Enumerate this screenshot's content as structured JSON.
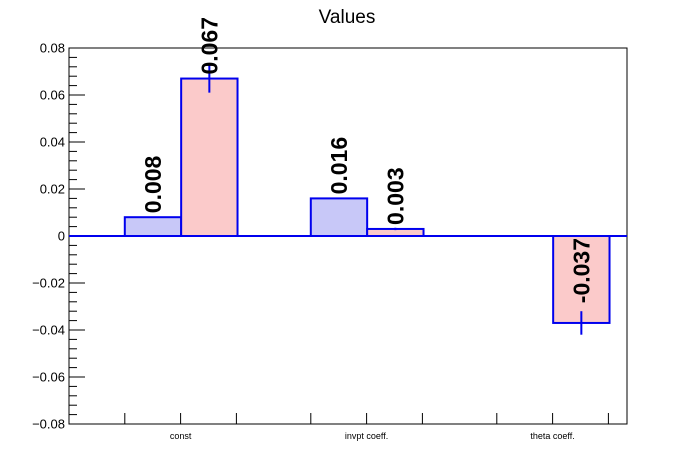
{
  "chart_data": {
    "type": "bar",
    "title": "Values",
    "xlabel": "",
    "ylabel": "",
    "categories": [
      "const",
      "invpt coeff.",
      "theta coeff."
    ],
    "ylim": [
      -0.08,
      0.08
    ],
    "yticks": [
      -0.08,
      -0.06,
      -0.04,
      -0.02,
      0,
      0.02,
      0.04,
      0.06,
      0.08
    ],
    "ytick_labels": [
      "−0.08",
      "−0.06",
      "−0.04",
      "−0.02",
      "0",
      "0.02",
      "0.04",
      "0.06",
      "0.08"
    ],
    "grid": false,
    "series": [
      {
        "color_fill": "#c8c8f8",
        "color_edge": "#0000ee",
        "values": [
          0.008,
          0.016,
          null
        ],
        "errors": [
          null,
          null,
          null
        ],
        "labels": [
          "0.008",
          "0.016",
          ""
        ]
      },
      {
        "color_fill": "#fbcaca",
        "color_edge": "#0000ee",
        "values": [
          0.067,
          0.003,
          -0.037
        ],
        "errors": [
          0.006,
          0.0005,
          0.005
        ],
        "labels": [
          "0.067",
          "0.003",
          "-0.037"
        ]
      }
    ]
  }
}
